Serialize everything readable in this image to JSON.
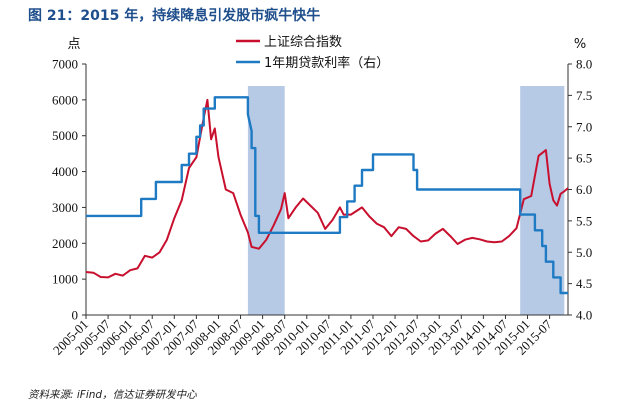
{
  "page": {
    "title": "图 21：2015 年，持续降息引发股市疯牛快牛",
    "source": "资料来源: iFind，信达证券研发中心"
  },
  "chart_data": {
    "type": "line",
    "left_unit": "点",
    "right_unit": "%",
    "y_left_lim": [
      0,
      7000
    ],
    "y_left_ticks": [
      "0",
      "1000",
      "2000",
      "3000",
      "4000",
      "5000",
      "6000",
      "7000"
    ],
    "y_right_lim": [
      4.0,
      8.0
    ],
    "y_right_ticks": [
      "4.0",
      "4.5",
      "5.0",
      "5.5",
      "6.0",
      "6.5",
      "7.0",
      "7.5",
      "8.0"
    ],
    "x_lim": [
      "2005-01",
      "2015-12"
    ],
    "x_ticks": [
      "2005-01",
      "2005-07",
      "2006-01",
      "2006-07",
      "2007-01",
      "2007-07",
      "2008-01",
      "2008-07",
      "2009-01",
      "2009-07",
      "2010-01",
      "2010-07",
      "2011-01",
      "2011-07",
      "2012-01",
      "2012-07",
      "2013-01",
      "2013-07",
      "2014-01",
      "2014-07",
      "2015-01",
      "2015-07"
    ],
    "legend_position": "top-center",
    "shaded_periods": [
      {
        "from": "2008-09",
        "to": "2009-07"
      },
      {
        "from": "2014-11",
        "to": "2015-11"
      }
    ],
    "series": [
      {
        "name": "上证综合指数",
        "axis": "left",
        "color": "#c8102e",
        "points": [
          [
            "2005-01",
            1200
          ],
          [
            "2005-03",
            1180
          ],
          [
            "2005-05",
            1060
          ],
          [
            "2005-07",
            1050
          ],
          [
            "2005-09",
            1150
          ],
          [
            "2005-11",
            1100
          ],
          [
            "2006-01",
            1250
          ],
          [
            "2006-03",
            1300
          ],
          [
            "2006-05",
            1650
          ],
          [
            "2006-07",
            1600
          ],
          [
            "2006-09",
            1750
          ],
          [
            "2006-11",
            2100
          ],
          [
            "2007-01",
            2700
          ],
          [
            "2007-03",
            3200
          ],
          [
            "2007-05",
            4100
          ],
          [
            "2007-07",
            4400
          ],
          [
            "2007-09",
            5500
          ],
          [
            "2007-10",
            6000
          ],
          [
            "2007-11",
            4900
          ],
          [
            "2007-12",
            5200
          ],
          [
            "2008-01",
            4400
          ],
          [
            "2008-03",
            3500
          ],
          [
            "2008-05",
            3400
          ],
          [
            "2008-07",
            2800
          ],
          [
            "2008-09",
            2300
          ],
          [
            "2008-10",
            1900
          ],
          [
            "2008-12",
            1850
          ],
          [
            "2009-02",
            2100
          ],
          [
            "2009-04",
            2500
          ],
          [
            "2009-06",
            2950
          ],
          [
            "2009-07",
            3400
          ],
          [
            "2009-08",
            2700
          ],
          [
            "2009-10",
            3000
          ],
          [
            "2009-12",
            3250
          ],
          [
            "2010-02",
            3050
          ],
          [
            "2010-04",
            2850
          ],
          [
            "2010-06",
            2400
          ],
          [
            "2010-08",
            2650
          ],
          [
            "2010-10",
            3000
          ],
          [
            "2010-11",
            2800
          ],
          [
            "2011-01",
            2800
          ],
          [
            "2011-04",
            3000
          ],
          [
            "2011-06",
            2750
          ],
          [
            "2011-08",
            2550
          ],
          [
            "2011-10",
            2450
          ],
          [
            "2011-12",
            2200
          ],
          [
            "2012-02",
            2450
          ],
          [
            "2012-04",
            2400
          ],
          [
            "2012-06",
            2200
          ],
          [
            "2012-08",
            2050
          ],
          [
            "2012-10",
            2080
          ],
          [
            "2012-12",
            2270
          ],
          [
            "2013-02",
            2400
          ],
          [
            "2013-04",
            2200
          ],
          [
            "2013-06",
            1980
          ],
          [
            "2013-08",
            2100
          ],
          [
            "2013-10",
            2150
          ],
          [
            "2013-12",
            2110
          ],
          [
            "2014-02",
            2050
          ],
          [
            "2014-04",
            2030
          ],
          [
            "2014-06",
            2050
          ],
          [
            "2014-08",
            2200
          ],
          [
            "2014-10",
            2420
          ],
          [
            "2014-12",
            3230
          ],
          [
            "2015-02",
            3320
          ],
          [
            "2015-04",
            4440
          ],
          [
            "2015-06",
            4600
          ],
          [
            "2015-07",
            3660
          ],
          [
            "2015-08",
            3200
          ],
          [
            "2015-09",
            3050
          ],
          [
            "2015-10",
            3380
          ],
          [
            "2015-11",
            3450
          ],
          [
            "2015-12",
            3540
          ]
        ]
      },
      {
        "name": "1年期贷款利率（右）",
        "axis": "right",
        "color": "#1f7ac4",
        "points": [
          [
            "2005-01",
            5.58
          ],
          [
            "2006-04",
            5.58
          ],
          [
            "2006-04",
            5.85
          ],
          [
            "2006-08",
            5.85
          ],
          [
            "2006-08",
            6.12
          ],
          [
            "2007-03",
            6.12
          ],
          [
            "2007-03",
            6.39
          ],
          [
            "2007-05",
            6.39
          ],
          [
            "2007-05",
            6.57
          ],
          [
            "2007-07",
            6.57
          ],
          [
            "2007-07",
            6.84
          ],
          [
            "2007-08",
            6.84
          ],
          [
            "2007-08",
            7.02
          ],
          [
            "2007-09",
            7.02
          ],
          [
            "2007-09",
            7.29
          ],
          [
            "2007-12",
            7.29
          ],
          [
            "2007-12",
            7.47
          ],
          [
            "2008-09",
            7.47
          ],
          [
            "2008-09",
            7.2
          ],
          [
            "2008-10",
            6.93
          ],
          [
            "2008-10",
            6.66
          ],
          [
            "2008-11",
            6.66
          ],
          [
            "2008-11",
            5.58
          ],
          [
            "2008-12",
            5.58
          ],
          [
            "2008-12",
            5.31
          ],
          [
            "2010-10",
            5.31
          ],
          [
            "2010-10",
            5.56
          ],
          [
            "2010-12",
            5.56
          ],
          [
            "2010-12",
            5.81
          ],
          [
            "2011-02",
            5.81
          ],
          [
            "2011-02",
            6.06
          ],
          [
            "2011-04",
            6.06
          ],
          [
            "2011-04",
            6.31
          ],
          [
            "2011-07",
            6.31
          ],
          [
            "2011-07",
            6.56
          ],
          [
            "2012-06",
            6.56
          ],
          [
            "2012-06",
            6.31
          ],
          [
            "2012-07",
            6.31
          ],
          [
            "2012-07",
            6.0
          ],
          [
            "2014-11",
            6.0
          ],
          [
            "2014-11",
            5.6
          ],
          [
            "2015-03",
            5.6
          ],
          [
            "2015-03",
            5.35
          ],
          [
            "2015-05",
            5.35
          ],
          [
            "2015-05",
            5.1
          ],
          [
            "2015-06",
            5.1
          ],
          [
            "2015-06",
            4.85
          ],
          [
            "2015-08",
            4.85
          ],
          [
            "2015-08",
            4.6
          ],
          [
            "2015-10",
            4.6
          ],
          [
            "2015-10",
            4.35
          ],
          [
            "2015-12",
            4.35
          ]
        ]
      }
    ]
  }
}
